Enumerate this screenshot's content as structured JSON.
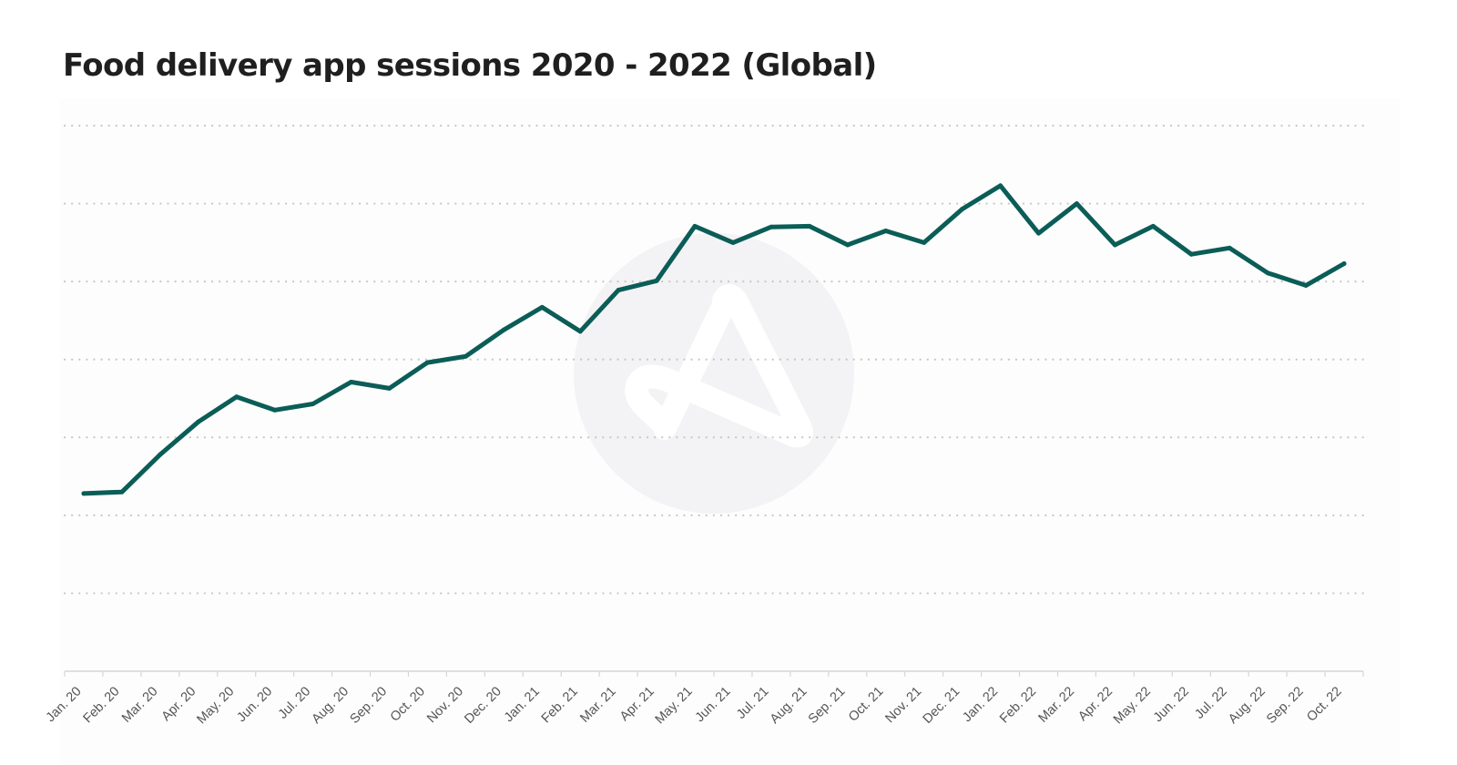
{
  "chart_data": {
    "type": "line",
    "title": "Food delivery app sessions 2020 - 2022 (Global)",
    "xlabel": "",
    "ylabel": "",
    "y_axis_labels_shown": false,
    "y_unit_note": "relative index (unlabeled axis; 1 unit = 1 gridline step)",
    "ylim": [
      0,
      7
    ],
    "y_gridlines": [
      1,
      2,
      3,
      4,
      5,
      6,
      7
    ],
    "grid": "horizontal dotted",
    "legend": "none",
    "categories": [
      "Jan. 20",
      "Feb. 20",
      "Mar. 20",
      "Apr. 20",
      "May. 20",
      "Jun. 20",
      "Jul. 20",
      "Aug. 20",
      "Sep. 20",
      "Oct. 20",
      "Nov. 20",
      "Dec. 20",
      "Jan. 21",
      "Feb. 21",
      "Mar. 21",
      "Apr. 21",
      "May. 21",
      "Jun. 21",
      "Jul. 21",
      "Aug. 21",
      "Sep. 21",
      "Oct. 21",
      "Nov. 21",
      "Dec. 21",
      "Jan. 22",
      "Feb. 22",
      "Mar. 22",
      "Apr. 22",
      "May. 22",
      "Jun. 22",
      "Jul. 22",
      "Aug. 22",
      "Sep. 22",
      "Oct. 22"
    ],
    "series": [
      {
        "name": "Food delivery app sessions",
        "color": "#0b5d57",
        "values": [
          2.28,
          2.3,
          2.78,
          3.2,
          3.52,
          3.35,
          3.43,
          3.71,
          3.63,
          3.96,
          4.04,
          4.38,
          4.67,
          4.36,
          4.89,
          5.01,
          5.71,
          5.5,
          5.7,
          5.71,
          5.47,
          5.65,
          5.5,
          5.93,
          6.23,
          5.62,
          6.0,
          5.47,
          5.71,
          5.35,
          5.43,
          5.11,
          4.95,
          5.23
        ]
      }
    ]
  },
  "colors": {
    "line": "#0b5d57",
    "gridline": "#c8c8c8",
    "axis": "#d6d6d6",
    "tick_label": "#555555",
    "title": "#1f1f1f",
    "watermark": "#f3f2f4"
  },
  "watermark": {
    "icon": "brand-logo-icon"
  }
}
